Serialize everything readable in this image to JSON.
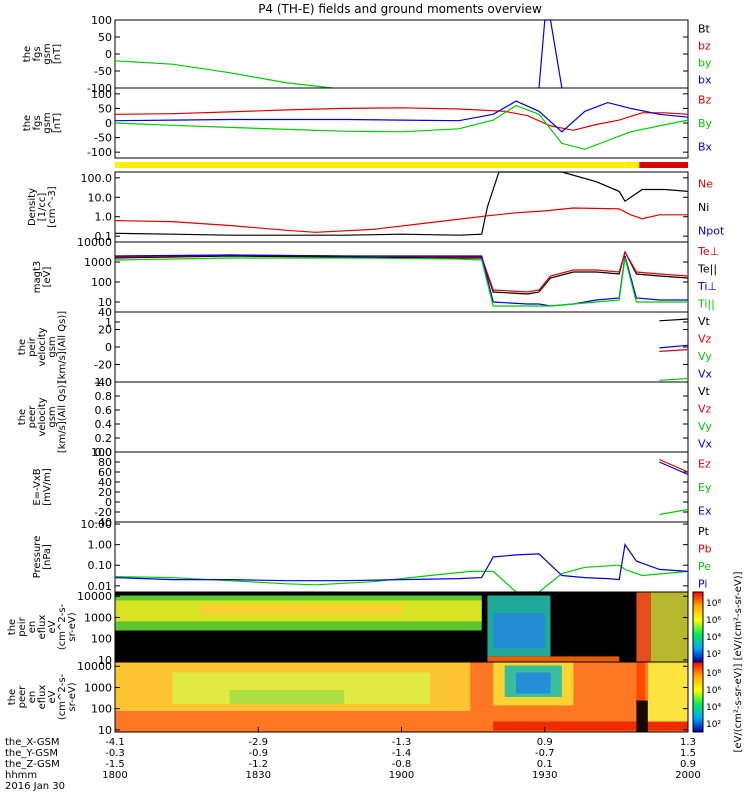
{
  "title": "P4 (TH-E) fields and ground moments overview",
  "colors": {
    "black": "#000000",
    "red": "#e00000",
    "green": "#00cc00",
    "blue": "#0000e0",
    "yellow": "#ffee00",
    "panel_bar_red": "#dd0000"
  },
  "bottom_axis": {
    "rows": [
      {
        "label": "the_X-GSM",
        "values": [
          "-4.1",
          "-2.9",
          "-1.3",
          "0.9",
          "1.3"
        ]
      },
      {
        "label": "the_Y-GSM",
        "values": [
          "-0.3",
          "-0.9",
          "-1.4",
          "-0.7",
          "1.5"
        ]
      },
      {
        "label": "the_Z-GSM",
        "values": [
          "-1.5",
          "-1.2",
          "-0.8",
          "0.1",
          "0.9"
        ]
      },
      {
        "label": "hhmm",
        "values": [
          "1800",
          "1830",
          "1900",
          "1930",
          "2000"
        ]
      }
    ],
    "date": "2016 Jan 30"
  },
  "colorbar": {
    "ticks": [
      "10⁸",
      "10⁶",
      "10⁴",
      "10²",
      "10⁸",
      "10⁶",
      "10⁴",
      "10²"
    ],
    "label": "[eV/(cm²-s-sr-eV)]  [eV/(cm²-s-sr-eV)]"
  },
  "chart_data": [
    {
      "type": "line",
      "name": "fgs",
      "ylabel": [
        "the",
        "fgs",
        "gsm",
        "[nT]"
      ],
      "ylim": [
        -100,
        100
      ],
      "yticks": [
        "100",
        "50",
        "0",
        "-50",
        "-100"
      ],
      "legend": [
        {
          "text": "Bt",
          "color": "#000000"
        },
        {
          "text": "bz",
          "color": "#e00000"
        },
        {
          "text": "by",
          "color": "#00cc00"
        },
        {
          "text": "bx",
          "color": "#0000e0"
        }
      ],
      "series": [
        {
          "name": "by",
          "color": "#00cc00",
          "x": [
            0,
            10,
            20,
            30,
            38,
            46,
            48,
            78,
            80,
            84,
            85,
            90,
            100
          ],
          "y": [
            -20,
            -30,
            -55,
            -85,
            -100,
            null,
            null,
            null,
            100,
            null,
            null,
            100,
            null
          ]
        },
        {
          "name": "bx",
          "color": "#0000e0",
          "x": [
            74,
            75,
            76,
            78
          ],
          "y": [
            -100,
            100,
            100,
            -100
          ]
        }
      ]
    },
    {
      "type": "line",
      "name": "fgs_ref",
      "ylabel": [
        "the",
        "fgs",
        "gsm",
        "[nT]"
      ],
      "ylim": [
        -120,
        120
      ],
      "yticks": [
        "100",
        "50",
        "0",
        "-50",
        "-100"
      ],
      "legend": [
        {
          "text": "Bz",
          "color": "#e00000"
        },
        {
          "text": "By",
          "color": "#00cc00"
        },
        {
          "text": "Bx",
          "color": "#0000e0"
        }
      ],
      "series": [
        {
          "name": "Bz",
          "color": "#e00000",
          "x": [
            0,
            10,
            20,
            30,
            40,
            50,
            60,
            68,
            72,
            76,
            80,
            84,
            88,
            92,
            96,
            100
          ],
          "y": [
            30,
            32,
            38,
            45,
            50,
            52,
            48,
            40,
            25,
            -10,
            -25,
            -5,
            10,
            35,
            35,
            30
          ]
        },
        {
          "name": "By",
          "color": "#00cc00",
          "x": [
            0,
            10,
            20,
            30,
            40,
            50,
            60,
            66,
            70,
            74,
            78,
            82,
            86,
            90,
            95,
            100
          ],
          "y": [
            0,
            -8,
            -15,
            -22,
            -28,
            -30,
            -20,
            10,
            60,
            30,
            -70,
            -90,
            -60,
            -30,
            -10,
            10
          ]
        },
        {
          "name": "Bx",
          "color": "#0000e0",
          "x": [
            0,
            10,
            20,
            30,
            40,
            50,
            60,
            66,
            70,
            74,
            78,
            82,
            86,
            90,
            95,
            100
          ],
          "y": [
            8,
            10,
            12,
            12,
            12,
            10,
            8,
            30,
            75,
            40,
            -30,
            40,
            70,
            50,
            30,
            20
          ]
        }
      ]
    },
    {
      "type": "line",
      "name": "density",
      "ylabel": [
        "Density",
        "[1/cc]",
        "[cm^-3]"
      ],
      "ylim_log": [
        -1.3,
        2.3
      ],
      "yticks": [
        "100.0",
        "10.0",
        "1.0",
        "0.1"
      ],
      "ytick_vals": [
        2,
        1,
        0,
        -1
      ],
      "legend": [
        {
          "text": "Ne",
          "color": "#e00000"
        },
        {
          "text": "Ni",
          "color": "#000000"
        },
        {
          "text": "Npot",
          "color": "#0000e0"
        }
      ],
      "series": [
        {
          "name": "Ne",
          "color": "#e00000",
          "x": [
            0,
            10,
            20,
            30,
            35,
            45,
            55,
            65,
            70,
            75,
            80,
            88,
            90,
            92,
            95,
            100
          ],
          "y": [
            -0.2,
            -0.25,
            -0.45,
            -0.7,
            -0.8,
            -0.65,
            -0.3,
            0.05,
            0.2,
            0.3,
            0.45,
            0.4,
            0.1,
            -0.1,
            0.1,
            0.1
          ]
        },
        {
          "name": "Ni",
          "color": "#000000",
          "x": [
            0,
            10,
            20,
            30,
            40,
            50,
            60,
            64,
            65,
            67,
            72,
            78,
            84,
            88,
            89,
            92,
            96,
            100
          ],
          "y": [
            -0.85,
            -0.9,
            -0.95,
            -0.95,
            -0.95,
            -0.9,
            -0.95,
            -0.9,
            0.5,
            2.3,
            2.3,
            2.3,
            1.8,
            1.3,
            0.8,
            1.4,
            1.4,
            1.3
          ]
        }
      ]
    },
    {
      "type": "line",
      "name": "moments",
      "ylabel": [
        "magt3",
        "[eV]"
      ],
      "ylim_log": [
        0.5,
        4.0
      ],
      "yticks": [
        "10000",
        "1000",
        "100",
        "10",
        "1"
      ],
      "ytick_vals": [
        4,
        3,
        2,
        1,
        0
      ],
      "legend": [
        {
          "text": "Te⊥",
          "color": "#e00000"
        },
        {
          "text": "Te||",
          "color": "#000000"
        },
        {
          "text": "Ti⊥",
          "color": "#0000e0"
        },
        {
          "text": "Ti||",
          "color": "#00cc00"
        }
      ],
      "series": [
        {
          "name": "Te||",
          "color": "#000000",
          "x": [
            0,
            20,
            40,
            60,
            64,
            66,
            72,
            74,
            76,
            80,
            84,
            88,
            89,
            91,
            95,
            100
          ],
          "y": [
            3.2,
            3.3,
            3.25,
            3.2,
            3.2,
            1.5,
            1.4,
            1.5,
            2.2,
            2.5,
            2.5,
            2.4,
            3.5,
            2.4,
            2.3,
            2.2
          ]
        },
        {
          "name": "Te⊥",
          "color": "#e00000",
          "x": [
            0,
            20,
            40,
            60,
            64,
            66,
            72,
            74,
            76,
            80,
            84,
            88,
            89,
            91,
            95,
            100
          ],
          "y": [
            3.25,
            3.35,
            3.3,
            3.25,
            3.25,
            1.6,
            1.5,
            1.6,
            2.3,
            2.6,
            2.6,
            2.5,
            3.5,
            2.5,
            2.4,
            2.3
          ]
        },
        {
          "name": "Ti⊥",
          "color": "#0000e0",
          "x": [
            0,
            20,
            40,
            60,
            64,
            66,
            72,
            74,
            76,
            80,
            84,
            88,
            89,
            91,
            95,
            100
          ],
          "y": [
            3.3,
            3.35,
            3.3,
            3.3,
            3.3,
            1.0,
            0.9,
            0.9,
            0.8,
            0.9,
            1.1,
            1.2,
            3.3,
            1.2,
            1.1,
            1.1
          ]
        },
        {
          "name": "Ti||",
          "color": "#00cc00",
          "x": [
            0,
            20,
            40,
            60,
            64,
            66,
            72,
            76,
            80,
            84,
            88,
            89,
            91,
            100
          ],
          "y": [
            3.1,
            3.2,
            3.2,
            3.15,
            3.1,
            0.8,
            0.8,
            0.8,
            0.9,
            1.0,
            1.1,
            3.2,
            1.0,
            1.0
          ]
        }
      ]
    },
    {
      "type": "line",
      "name": "peir_velocity",
      "ylabel": [
        "the",
        "peir",
        "velocity",
        "gsm",
        "[km/s](All Qs)]"
      ],
      "ylim": [
        -40,
        40
      ],
      "yticks": [
        "40",
        "20",
        "0",
        "-20",
        "-40"
      ],
      "legend": [
        {
          "text": "Vt",
          "color": "#000000"
        },
        {
          "text": "Vz",
          "color": "#e00000"
        },
        {
          "text": "Vy",
          "color": "#00cc00"
        },
        {
          "text": "Vx",
          "color": "#0000e0"
        }
      ],
      "series": [
        {
          "name": "Vt",
          "color": "#000000",
          "x": [
            95,
            100
          ],
          "y": [
            30,
            32
          ]
        },
        {
          "name": "Vz",
          "color": "#e00000",
          "x": [
            95,
            100
          ],
          "y": [
            -5,
            -3
          ]
        },
        {
          "name": "Vy",
          "color": "#00cc00",
          "x": [
            95,
            100
          ],
          "y": [
            -38,
            -36
          ]
        },
        {
          "name": "Vx",
          "color": "#0000e0",
          "x": [
            95,
            100
          ],
          "y": [
            -1,
            2
          ]
        }
      ]
    },
    {
      "type": "line",
      "name": "peer_velocity",
      "ylabel": [
        "the",
        "peer",
        "velocity",
        "gsm",
        "[km/s](All Qs)]"
      ],
      "ylim": [
        0,
        1
      ],
      "yticks": [
        "1.0",
        "0.8",
        "0.6",
        "0.4",
        "0.2",
        "0.0"
      ],
      "legend": [
        {
          "text": "Vt",
          "color": "#000000"
        },
        {
          "text": "Vz",
          "color": "#e00000"
        },
        {
          "text": "Vy",
          "color": "#00cc00"
        },
        {
          "text": "Vx",
          "color": "#0000e0"
        }
      ],
      "series": []
    },
    {
      "type": "line",
      "name": "efield",
      "ylabel": [
        "E=-VxB",
        "[mV/m]"
      ],
      "ylim": [
        -40,
        100
      ],
      "yticks": [
        "100",
        "80",
        "60",
        "40",
        "20",
        "0",
        "-20",
        "-40"
      ],
      "legend": [
        {
          "text": "Ez",
          "color": "#e00000"
        },
        {
          "text": "Ey",
          "color": "#00cc00"
        },
        {
          "text": "Ex",
          "color": "#0000e0"
        }
      ],
      "series": [
        {
          "name": "Ez",
          "color": "#e00000",
          "x": [
            95,
            97,
            100
          ],
          "y": [
            85,
            75,
            60
          ]
        },
        {
          "name": "Ey",
          "color": "#00cc00",
          "x": [
            95,
            100
          ],
          "y": [
            -25,
            -15
          ]
        },
        {
          "name": "Ex",
          "color": "#0000e0",
          "x": [
            95,
            97,
            100
          ],
          "y": [
            80,
            70,
            55
          ]
        }
      ]
    },
    {
      "type": "line",
      "name": "pressure",
      "ylabel": [
        "Pressure",
        "[nPa]"
      ],
      "ylim_log": [
        -2.3,
        1.1
      ],
      "yticks": [
        "10.00",
        "1.00",
        "0.10",
        "0.01"
      ],
      "ytick_vals": [
        1,
        0,
        -1,
        -2
      ],
      "legend": [
        {
          "text": "Pt",
          "color": "#000000"
        },
        {
          "text": "Pb",
          "color": "#e00000"
        },
        {
          "text": "Pe",
          "color": "#00cc00"
        },
        {
          "text": "Pi",
          "color": "#0000e0"
        }
      ],
      "series": [
        {
          "name": "Pe",
          "color": "#00cc00",
          "x": [
            0,
            10,
            20,
            30,
            35,
            45,
            55,
            62,
            66,
            70,
            74,
            78,
            82,
            88,
            89,
            92,
            100
          ],
          "y": [
            -1.55,
            -1.6,
            -1.75,
            -1.9,
            -1.95,
            -1.8,
            -1.5,
            -1.3,
            -1.3,
            -2.3,
            -2.3,
            -1.4,
            -1.1,
            -1.0,
            -1.2,
            -1.5,
            -1.3
          ]
        },
        {
          "name": "Pi",
          "color": "#0000e0",
          "x": [
            0,
            10,
            20,
            30,
            40,
            50,
            60,
            64,
            66,
            70,
            74,
            78,
            82,
            86,
            88,
            89,
            91,
            95,
            100
          ],
          "y": [
            -1.6,
            -1.7,
            -1.7,
            -1.75,
            -1.75,
            -1.7,
            -1.65,
            -1.6,
            -0.6,
            -0.5,
            -0.45,
            -1.5,
            -1.6,
            -1.65,
            -1.7,
            0.0,
            -0.8,
            -1.2,
            -1.3
          ]
        }
      ]
    },
    {
      "type": "heatmap",
      "name": "peir_spectrogram",
      "ylabel": [
        "the",
        "peir",
        "en",
        "eflux",
        "eV",
        "(cm^2-s-",
        "sr-eV)"
      ],
      "ylim_log": [
        0.9,
        4.2
      ],
      "yticks": [
        "10000",
        "1000",
        "100",
        "10"
      ],
      "ytick_vals": [
        4,
        3,
        2,
        1
      ]
    },
    {
      "type": "heatmap",
      "name": "peer_spectrogram",
      "ylabel": [
        "the",
        "peer",
        "en",
        "eflux",
        "eV",
        "(cm^2-s-",
        "sr-eV)"
      ],
      "ylim_log": [
        0.9,
        4.2
      ],
      "yticks": [
        "10000",
        "1000",
        "100",
        "10"
      ],
      "ytick_vals": [
        4,
        3,
        2,
        1
      ]
    }
  ]
}
